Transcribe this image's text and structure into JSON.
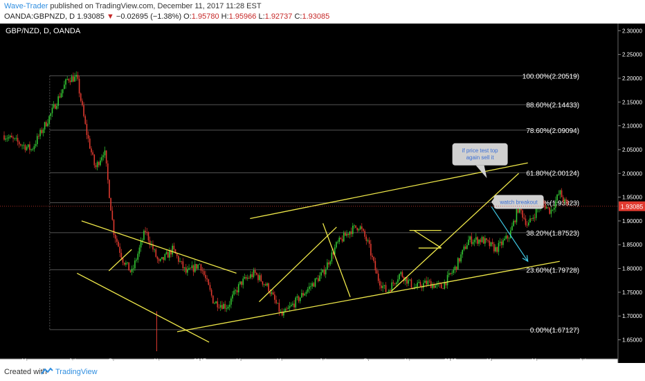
{
  "header": {
    "author": "Wave-Trader",
    "published": " published on TradingView.com, December 11, 2017 11:28 EST",
    "symbol": "OANDA:GBPNZD, D",
    "last": "1.93085",
    "change": "−0.02695 (−1.38%)",
    "o_label": "O:",
    "o": "1.95780",
    "h_label": "H:",
    "h": "1.95966",
    "l_label": "L:",
    "l": "1.92737",
    "c_label": "C:",
    "c": "1.93085"
  },
  "footer": {
    "created": "Created with",
    "brand": "TradingView"
  },
  "colors": {
    "background": "#000000",
    "bull": "#34c934",
    "bear": "#e03a2f",
    "trendline": "#f0e94a",
    "projection": "#3fc8e4",
    "fib": "#555555",
    "price_tag": "#e03a2f",
    "callout": "#d0d0d0",
    "callout_text": "#3b6fd6"
  },
  "chart_data": {
    "type": "candlestick",
    "title": "GBP/NZD, D, OANDA",
    "ylim": [
      1.61,
      2.315
    ],
    "y_ticks": [
      "2.30000",
      "2.25000",
      "2.20000",
      "2.15000",
      "2.10000",
      "2.05000",
      "2.00000",
      "1.95000",
      "1.90000",
      "1.85000",
      "1.80000",
      "1.75000",
      "1.70000",
      "1.65000"
    ],
    "x_ticks": [
      "May",
      "Jul",
      "Sep",
      "Nov",
      "2017",
      "Mar",
      "May",
      "Jul",
      "Sep",
      "Nov",
      "2018",
      "Mar",
      "May",
      "Jul"
    ],
    "path": [
      {
        "t": 0,
        "p": 2.08
      },
      {
        "t": 6,
        "p": 2.05
      },
      {
        "t": 10,
        "p": 2.12
      },
      {
        "t": 14,
        "p": 2.2
      },
      {
        "t": 16,
        "p": 2.2
      },
      {
        "t": 18,
        "p": 2.09
      },
      {
        "t": 20,
        "p": 2.01
      },
      {
        "t": 22,
        "p": 2.05
      },
      {
        "t": 24,
        "p": 1.88
      },
      {
        "t": 26,
        "p": 1.82
      },
      {
        "t": 28,
        "p": 1.79
      },
      {
        "t": 31,
        "p": 1.88
      },
      {
        "t": 34,
        "p": 1.81
      },
      {
        "t": 37,
        "p": 1.84
      },
      {
        "t": 40,
        "p": 1.79
      },
      {
        "t": 43,
        "p": 1.81
      },
      {
        "t": 46,
        "p": 1.73
      },
      {
        "t": 49,
        "p": 1.72
      },
      {
        "t": 52,
        "p": 1.77
      },
      {
        "t": 55,
        "p": 1.79
      },
      {
        "t": 58,
        "p": 1.76
      },
      {
        "t": 61,
        "p": 1.7
      },
      {
        "t": 64,
        "p": 1.73
      },
      {
        "t": 67,
        "p": 1.76
      },
      {
        "t": 70,
        "p": 1.79
      },
      {
        "t": 73,
        "p": 1.85
      },
      {
        "t": 76,
        "p": 1.88
      },
      {
        "t": 78,
        "p": 1.89
      },
      {
        "t": 80,
        "p": 1.85
      },
      {
        "t": 82,
        "p": 1.78
      },
      {
        "t": 84,
        "p": 1.75
      },
      {
        "t": 87,
        "p": 1.79
      },
      {
        "t": 90,
        "p": 1.76
      },
      {
        "t": 93,
        "p": 1.77
      },
      {
        "t": 96,
        "p": 1.76
      },
      {
        "t": 99,
        "p": 1.8
      },
      {
        "t": 102,
        "p": 1.86
      },
      {
        "t": 105,
        "p": 1.86
      },
      {
        "t": 108,
        "p": 1.84
      },
      {
        "t": 111,
        "p": 1.87
      },
      {
        "t": 113,
        "p": 1.93
      },
      {
        "t": 115,
        "p": 1.89
      },
      {
        "t": 118,
        "p": 1.94
      },
      {
        "t": 120,
        "p": 1.92
      },
      {
        "t": 122,
        "p": 1.96
      },
      {
        "t": 123,
        "p": 1.94
      },
      {
        "t": 124,
        "p": 1.93
      }
    ],
    "candles_t_range": [
      0,
      124
    ],
    "date_axis_t": [
      5,
      15,
      24,
      34,
      43,
      52,
      61,
      70,
      80,
      89,
      98,
      107,
      117,
      127
    ],
    "fib_levels": [
      {
        "label": "100.00%(2.20519)",
        "value": 2.20519
      },
      {
        "label": "88.60%(2.14433)",
        "value": 2.14433
      },
      {
        "label": "78.60%(2.09094)",
        "value": 2.09094
      },
      {
        "label": "61.80%(2.00124)",
        "value": 2.00124
      },
      {
        "label": "50.00%(1.93823)",
        "value": 1.93823
      },
      {
        "label": "38.20%(1.87523)",
        "value": 1.87523
      },
      {
        "label": "23.60%(1.79728)",
        "value": 1.79728
      },
      {
        "label": "0.00%(1.67127)",
        "value": 1.67127
      }
    ],
    "fib_t_range": [
      10,
      126
    ],
    "current_price": {
      "value": 1.93085,
      "label": "1.93085"
    },
    "trendlines": [
      {
        "t1": 17,
        "p1": 1.9,
        "t2": 51,
        "p2": 1.79,
        "name": "channel-top"
      },
      {
        "t1": 16,
        "p1": 1.79,
        "t2": 45,
        "p2": 1.645,
        "name": "channel-bottom"
      },
      {
        "t1": 23,
        "p1": 1.795,
        "t2": 28,
        "p2": 1.84,
        "name": "small-up-1"
      },
      {
        "t1": 38,
        "p1": 1.667,
        "t2": 122,
        "p2": 1.815,
        "name": "long-support"
      },
      {
        "t1": 54,
        "p1": 1.905,
        "t2": 115,
        "p2": 2.022,
        "name": "upper-channel"
      },
      {
        "t1": 56,
        "p1": 1.73,
        "t2": 73,
        "p2": 1.887,
        "name": "rise-1"
      },
      {
        "t1": 70,
        "p1": 1.895,
        "t2": 76,
        "p2": 1.74,
        "name": "drop-1"
      },
      {
        "t1": 85,
        "p1": 1.752,
        "t2": 113,
        "p2": 2.0,
        "name": "rising-support"
      },
      {
        "t1": 89,
        "p1": 1.88,
        "t2": 96,
        "p2": 1.88,
        "name": "box-top"
      },
      {
        "t1": 91,
        "p1": 1.843,
        "t2": 96,
        "p2": 1.843,
        "name": "box-bottom"
      },
      {
        "t1": 90,
        "p1": 1.88,
        "t2": 96,
        "p2": 1.843,
        "name": "box-diag"
      }
    ],
    "projection": {
      "t1": 107,
      "p1": 1.93,
      "t2": 115,
      "p2": 1.815
    },
    "annotations": [
      {
        "name": "callout-sell-top",
        "text1": "if price test top",
        "text2": "again sell it",
        "t": 104.5,
        "p": 2.04,
        "pointer_t": 106,
        "pointer_p": 1.99
      },
      {
        "name": "callout-watch-breakout",
        "text1": "watch breakout",
        "t": 113,
        "p": 1.94,
        "pointer_t": 107,
        "pointer_p": 1.94
      }
    ],
    "low_wick": {
      "t": 33.5,
      "p_top": 1.71,
      "p_bottom": 1.626
    }
  }
}
